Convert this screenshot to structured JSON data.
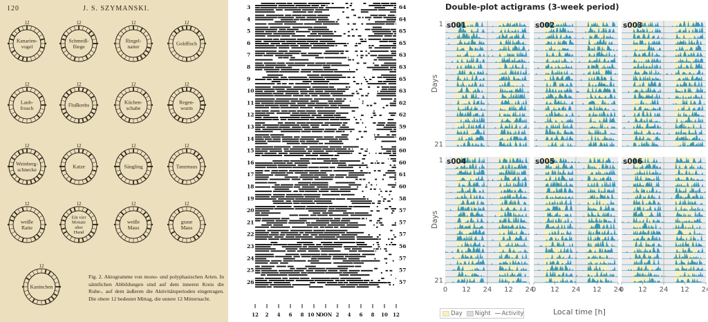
{
  "figure": {
    "panels": [
      {
        "id": "szymanski-page",
        "page_number": "120",
        "running_head": "J. S. SZYMANSKI.",
        "dial_top_label": "12",
        "dials": [
          {
            "label": "Kanarien-\nvogel"
          },
          {
            "label": "Schmeiß-\nfliege"
          },
          {
            "label": "Ringel-\nnatter"
          },
          {
            "label": "Goldfisch"
          },
          {
            "label": "Laub-\nfrosch"
          },
          {
            "label": "Flußkrebs"
          },
          {
            "label": "Küchen-\nschabe"
          },
          {
            "label": "Regen-\nwurm"
          },
          {
            "label": "Weinberg-\nschnecke"
          },
          {
            "label": "Katze"
          },
          {
            "label": "Säugling"
          },
          {
            "label": "Tanzmaus"
          },
          {
            "label": "weiße\nRatte"
          },
          {
            "label": "Ein vier\nMonate\nalter\nHund"
          },
          {
            "label": "weiße\nMaus"
          },
          {
            "label": "graue\nMaus"
          },
          {
            "label": "Kaninchen"
          }
        ],
        "caption": "Fig. 2. Aktogramme von mono- und polyphasischen Arten. In sämtlichen Abbildungen sind auf dem inneren Kreis die Ruhe-, auf dem äußeren die Aktivitätsperioden eingetragen. Die obere 12 bedeutet Mittag, die untere 12 Mitternacht."
      },
      {
        "id": "raster-actogram",
        "row_labels_left": [
          "3",
          "4",
          "5",
          "6",
          "7",
          "8",
          "9",
          "10",
          "11",
          "12",
          "13",
          "14",
          "15",
          "16",
          "17",
          "18",
          "19",
          "20",
          "21",
          "22",
          "23",
          "24",
          "25",
          "26"
        ],
        "row_labels_right": [
          "64",
          "64",
          "65",
          "65",
          "63",
          "63",
          "65",
          "63",
          "62",
          "62",
          "59",
          "60",
          "60",
          "60",
          "61",
          "60",
          "58",
          "57",
          "57",
          "57",
          "56",
          "57",
          "57",
          "57"
        ],
        "x_tick_labels": [
          "12",
          "2",
          "4",
          "6",
          "8",
          "10",
          "NOON",
          "2",
          "4",
          "6",
          "8",
          "10",
          "12"
        ],
        "x_tick_display": [
          "12",
          "2",
          "4",
          "6",
          "8",
          "10 N",
          "OON",
          "2",
          "4",
          "6",
          "8",
          "10",
          "12"
        ]
      },
      {
        "id": "double-plot-actigrams",
        "title": "Double-plot actigrams (3-week period)",
        "subjects": [
          "s001",
          "s002",
          "s003",
          "s004",
          "s005",
          "s006"
        ],
        "y_axis": {
          "label": "Days",
          "ticks": [
            "1",
            "21"
          ],
          "range": [
            1,
            21
          ]
        },
        "x_axis": {
          "label": "Local time [h]",
          "ticks": [
            "0",
            "12",
            "24"
          ],
          "range": [
            0,
            48
          ]
        },
        "legend": [
          {
            "name": "Day",
            "color": "#f6f0c8"
          },
          {
            "name": "Night",
            "color": "#dcdcdc"
          },
          {
            "name": "Activity",
            "color": "#8a8a8a"
          }
        ],
        "activity_color": "#2a8fb8"
      }
    ]
  },
  "chart_data": {
    "type": "bar",
    "title": "Double-plot actigrams (3-week period)",
    "xlabel": "Local time [h]",
    "ylabel": "Days",
    "series": [
      {
        "name": "s001"
      },
      {
        "name": "s002"
      },
      {
        "name": "s003"
      },
      {
        "name": "s004"
      },
      {
        "name": "s005"
      },
      {
        "name": "s006"
      }
    ],
    "x_range": [
      0,
      48
    ],
    "y_range": [
      1,
      21
    ],
    "legend": [
      "Day",
      "Night",
      "Activity"
    ],
    "legend_position": "bottom-left"
  }
}
